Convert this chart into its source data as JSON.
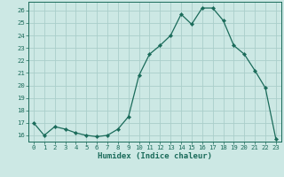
{
  "x": [
    0,
    1,
    2,
    3,
    4,
    5,
    6,
    7,
    8,
    9,
    10,
    11,
    12,
    13,
    14,
    15,
    16,
    17,
    18,
    19,
    20,
    21,
    22,
    23
  ],
  "y": [
    17.0,
    16.0,
    16.7,
    16.5,
    16.2,
    16.0,
    15.9,
    16.0,
    16.5,
    17.5,
    20.8,
    22.5,
    23.2,
    24.0,
    25.7,
    24.9,
    26.2,
    26.2,
    25.2,
    23.2,
    22.5,
    21.2,
    19.8,
    15.7
  ],
  "xlabel": "Humidex (Indice chaleur)",
  "line_color": "#1a6b5a",
  "marker_color": "#1a6b5a",
  "bg_color": "#cce8e4",
  "grid_color": "#aaceca",
  "tick_color": "#1a6b5a",
  "label_color": "#1a6b5a",
  "xlim": [
    -0.5,
    23.5
  ],
  "ylim": [
    15.5,
    26.7
  ],
  "yticks": [
    16,
    17,
    18,
    19,
    20,
    21,
    22,
    23,
    24,
    25,
    26
  ],
  "xticks": [
    0,
    1,
    2,
    3,
    4,
    5,
    6,
    7,
    8,
    9,
    10,
    11,
    12,
    13,
    14,
    15,
    16,
    17,
    18,
    19,
    20,
    21,
    22,
    23
  ],
  "tick_fontsize": 5.2,
  "xlabel_fontsize": 6.5
}
